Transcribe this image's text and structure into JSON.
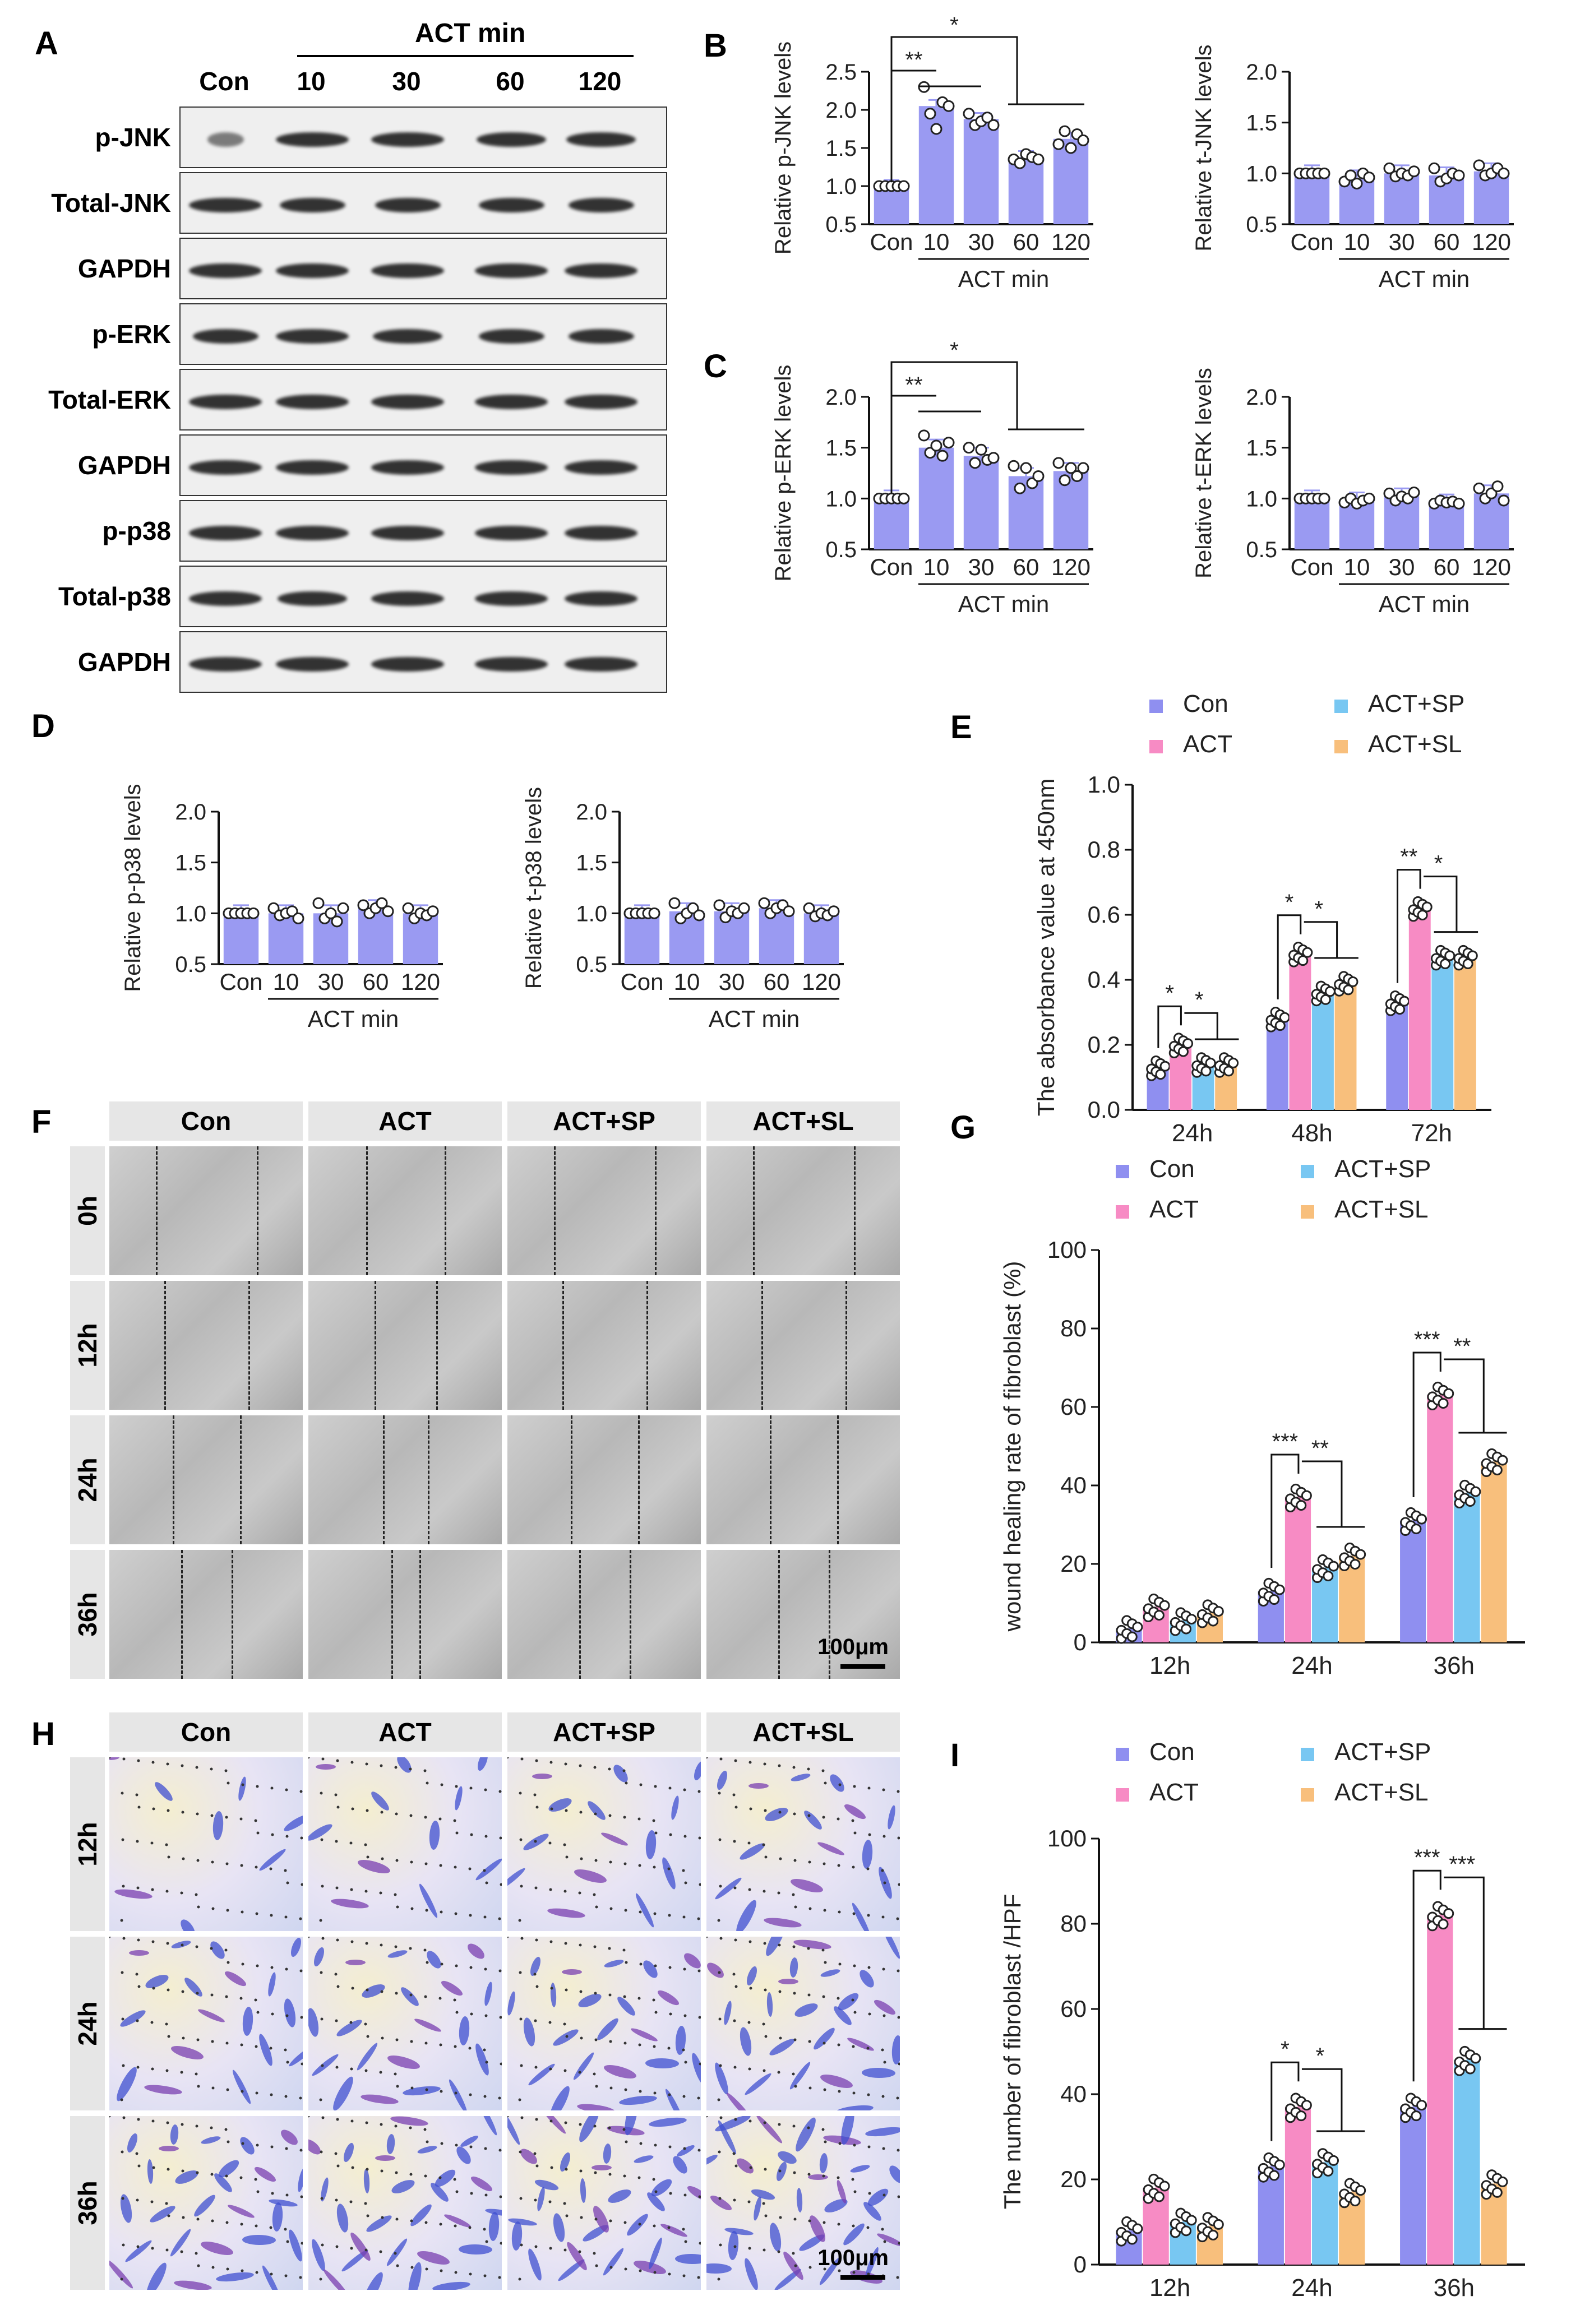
{
  "panel_labels": {
    "A": "A",
    "B": "B",
    "C": "C",
    "D": "D",
    "E": "E",
    "F": "F",
    "G": "G",
    "H": "H",
    "I": "I"
  },
  "blot": {
    "header_act": "ACT min",
    "lanes": [
      "Con",
      "10",
      "30",
      "60",
      "120"
    ],
    "rows": [
      "p-JNK",
      "Total-JNK",
      "GAPDH",
      "p-ERK",
      "Total-ERK",
      "GAPDH",
      "p-p38",
      "Total-p38",
      "GAPDH"
    ]
  },
  "images": {
    "columns": [
      "Con",
      "ACT",
      "ACT+SP",
      "ACT+SL"
    ],
    "wound_rows": [
      "0h",
      "12h",
      "24h",
      "36h"
    ],
    "transwell_rows": [
      "12h",
      "24h",
      "36h"
    ],
    "scale_label": "100μm"
  },
  "chart_data": [
    {
      "id": "B1",
      "type": "bar",
      "categories": [
        "Con",
        "10",
        "30",
        "60",
        "120"
      ],
      "values": [
        1.0,
        2.05,
        1.88,
        1.38,
        1.62
      ],
      "ylabel": "Relative p-JNK levels",
      "xlabel": "ACT min",
      "ylim": [
        0.5,
        2.5
      ],
      "yticks": [
        "0.5",
        "1.0",
        "1.5",
        "2.0",
        "2.5"
      ],
      "sig": [
        {
          "label": "**"
        },
        {
          "label": "*"
        }
      ],
      "points": [
        [
          1,
          1,
          1,
          1,
          1
        ],
        [
          2.3,
          1.95,
          1.75,
          2.1,
          2.05
        ],
        [
          1.95,
          1.8,
          1.85,
          1.9,
          1.8
        ],
        [
          1.35,
          1.3,
          1.42,
          1.38,
          1.35
        ],
        [
          1.55,
          1.72,
          1.5,
          1.68,
          1.6
        ]
      ]
    },
    {
      "id": "B2",
      "type": "bar",
      "categories": [
        "Con",
        "10",
        "30",
        "60",
        "120"
      ],
      "values": [
        1.0,
        0.95,
        1.0,
        0.98,
        1.02
      ],
      "ylabel": "Relative t-JNK levels",
      "xlabel": "ACT min",
      "ylim": [
        0.5,
        2.0
      ],
      "yticks": [
        "0.5",
        "1.0",
        "1.5",
        "2.0"
      ],
      "sig": [],
      "points": [
        [
          1,
          1,
          1,
          1,
          1
        ],
        [
          0.92,
          0.98,
          0.9,
          1.0,
          0.96
        ],
        [
          1.05,
          0.97,
          1.0,
          0.98,
          1.02
        ],
        [
          1.05,
          0.92,
          0.95,
          1.0,
          0.98
        ],
        [
          1.08,
          0.98,
          1.0,
          1.05,
          1.0
        ]
      ]
    },
    {
      "id": "C1",
      "type": "bar",
      "categories": [
        "Con",
        "10",
        "30",
        "60",
        "120"
      ],
      "values": [
        1.0,
        1.5,
        1.42,
        1.22,
        1.27
      ],
      "ylabel": "Relative p-ERK levels",
      "xlabel": "ACT min",
      "ylim": [
        0.5,
        2.0
      ],
      "yticks": [
        "0.5",
        "1.0",
        "1.5",
        "2.0"
      ],
      "sig": [
        {
          "label": "**"
        },
        {
          "label": "*"
        }
      ],
      "points": [
        [
          1,
          1,
          1,
          1,
          1
        ],
        [
          1.62,
          1.45,
          1.52,
          1.42,
          1.55
        ],
        [
          1.5,
          1.35,
          1.48,
          1.38,
          1.4
        ],
        [
          1.32,
          1.1,
          1.3,
          1.15,
          1.22
        ],
        [
          1.35,
          1.18,
          1.3,
          1.22,
          1.3
        ]
      ]
    },
    {
      "id": "C2",
      "type": "bar",
      "categories": [
        "Con",
        "10",
        "30",
        "60",
        "120"
      ],
      "values": [
        1.0,
        0.98,
        1.02,
        0.96,
        1.05
      ],
      "ylabel": "Relative t-ERK levels",
      "xlabel": "ACT min",
      "ylim": [
        0.5,
        2.0
      ],
      "yticks": [
        "0.5",
        "1.0",
        "1.5",
        "2.0"
      ],
      "sig": [],
      "points": [
        [
          1,
          1,
          1,
          1,
          1
        ],
        [
          0.96,
          1.0,
          0.95,
          0.98,
          1.0
        ],
        [
          1.05,
          0.98,
          1.02,
          1.0,
          1.06
        ],
        [
          0.95,
          0.98,
          0.96,
          0.97,
          0.95
        ],
        [
          1.1,
          1.0,
          1.05,
          1.12,
          0.98
        ]
      ]
    },
    {
      "id": "D1",
      "type": "bar",
      "categories": [
        "Con",
        "10",
        "30",
        "60",
        "120"
      ],
      "values": [
        1.0,
        1.0,
        1.0,
        1.05,
        1.0
      ],
      "ylabel": "Relative p-p38 levels",
      "xlabel": "ACT min",
      "ylim": [
        0.5,
        2.0
      ],
      "yticks": [
        "0.5",
        "1.0",
        "1.5",
        "2.0"
      ],
      "sig": [],
      "points": [
        [
          1,
          1,
          1,
          1,
          1
        ],
        [
          1.05,
          0.98,
          1.0,
          1.02,
          0.95
        ],
        [
          1.1,
          0.95,
          1.0,
          0.92,
          1.05
        ],
        [
          1.08,
          1.0,
          1.05,
          1.1,
          1.02
        ],
        [
          1.05,
          0.95,
          1.0,
          0.98,
          1.02
        ]
      ]
    },
    {
      "id": "D2",
      "type": "bar",
      "categories": [
        "Con",
        "10",
        "30",
        "60",
        "120"
      ],
      "values": [
        1.0,
        1.02,
        1.02,
        1.05,
        1.0
      ],
      "ylabel": "Relative t-p38 levels",
      "xlabel": "ACT min",
      "ylim": [
        0.5,
        2.0
      ],
      "yticks": [
        "0.5",
        "1.0",
        "1.5",
        "2.0"
      ],
      "sig": [],
      "points": [
        [
          1,
          1,
          1,
          1,
          1
        ],
        [
          1.1,
          0.95,
          1.0,
          1.05,
          0.98
        ],
        [
          1.08,
          0.96,
          1.02,
          1.0,
          1.05
        ],
        [
          1.1,
          1.0,
          1.05,
          1.08,
          1.02
        ],
        [
          1.05,
          0.97,
          1.0,
          0.98,
          1.02
        ]
      ]
    },
    {
      "id": "E",
      "type": "grouped_bar",
      "categories": [
        "24h",
        "48h",
        "72h"
      ],
      "series": [
        {
          "name": "Con",
          "values": [
            0.13,
            0.28,
            0.33
          ]
        },
        {
          "name": "ACT",
          "values": [
            0.2,
            0.48,
            0.62
          ]
        },
        {
          "name": "ACT+SP",
          "values": [
            0.14,
            0.36,
            0.47
          ]
        },
        {
          "name": "ACT+SL",
          "values": [
            0.14,
            0.39,
            0.47
          ]
        }
      ],
      "ylabel": "The absorbance value at 450nm",
      "ylim": [
        0.0,
        1.0
      ],
      "yticks": [
        "0.0",
        "0.2",
        "0.4",
        "0.6",
        "0.8",
        "1.0"
      ],
      "sig": [
        [
          "*",
          "*"
        ],
        [
          "*",
          "*"
        ],
        [
          "**",
          "*"
        ]
      ]
    },
    {
      "id": "G",
      "type": "grouped_bar",
      "categories": [
        "12h",
        "24h",
        "36h"
      ],
      "series": [
        {
          "name": "Con",
          "values": [
            3.5,
            13,
            31
          ]
        },
        {
          "name": "ACT",
          "values": [
            9,
            37,
            63
          ]
        },
        {
          "name": "ACT+SP",
          "values": [
            5.5,
            19,
            38
          ]
        },
        {
          "name": "ACT+SL",
          "values": [
            7.5,
            22,
            46
          ]
        }
      ],
      "ylabel": "wound healing rate of fibroblast (%)",
      "ylim": [
        0,
        100
      ],
      "yticks": [
        "0",
        "20",
        "40",
        "60",
        "80",
        "100"
      ],
      "sig": [
        null,
        [
          "***",
          "**"
        ],
        [
          "***",
          "**"
        ]
      ]
    },
    {
      "id": "I",
      "type": "grouped_bar",
      "categories": [
        "12h",
        "24h",
        "36h"
      ],
      "series": [
        {
          "name": "Con",
          "values": [
            8,
            23,
            37
          ]
        },
        {
          "name": "ACT",
          "values": [
            18,
            37,
            82
          ]
        },
        {
          "name": "ACT+SP",
          "values": [
            10,
            24,
            48
          ]
        },
        {
          "name": "ACT+SL",
          "values": [
            9,
            17,
            19
          ]
        }
      ],
      "ylabel": "The number of fibroblast /HPF",
      "ylim": [
        0,
        100
      ],
      "yticks": [
        "0",
        "20",
        "40",
        "60",
        "80",
        "100"
      ],
      "sig": [
        null,
        [
          "*",
          "*"
        ],
        [
          "***",
          "***"
        ]
      ]
    }
  ],
  "colors": {
    "Con": "#8f8ff0",
    "ACT": "#f78bc4",
    "ACT+SP": "#78c7f2",
    "ACT+SL": "#f8bf7c",
    "single": "#9a9af2"
  }
}
